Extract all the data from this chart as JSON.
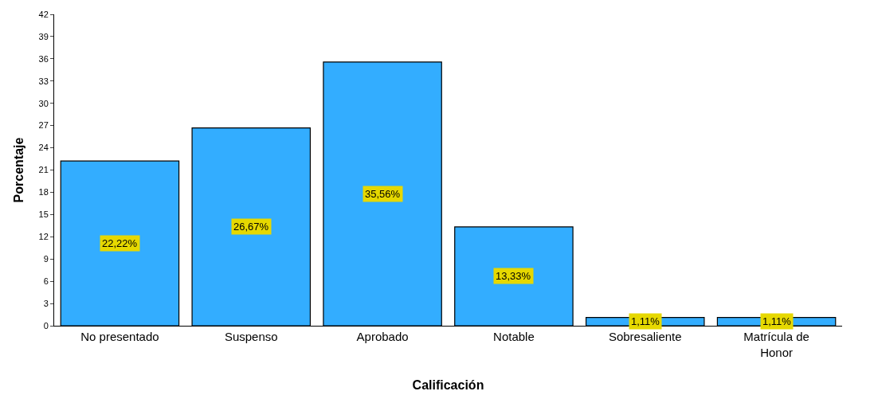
{
  "chart_data": {
    "type": "bar",
    "xlabel": "Calificación",
    "ylabel": "Porcentaje",
    "categories": [
      "No presentado",
      "Suspenso",
      "Aprobado",
      "Notable",
      "Sobresaliente",
      "Matrícula de Honor"
    ],
    "values": [
      22.22,
      26.67,
      35.56,
      13.33,
      1.11,
      1.11
    ],
    "value_labels": [
      "22,22%",
      "26,67%",
      "35,56%",
      "13,33%",
      "1,11%",
      "1,11%"
    ],
    "color": "#33adff",
    "ylim": [
      0,
      42
    ],
    "yticks": [
      0,
      3,
      6,
      9,
      12,
      15,
      18,
      21,
      24,
      27,
      30,
      33,
      36,
      39,
      42
    ],
    "grid": false
  }
}
